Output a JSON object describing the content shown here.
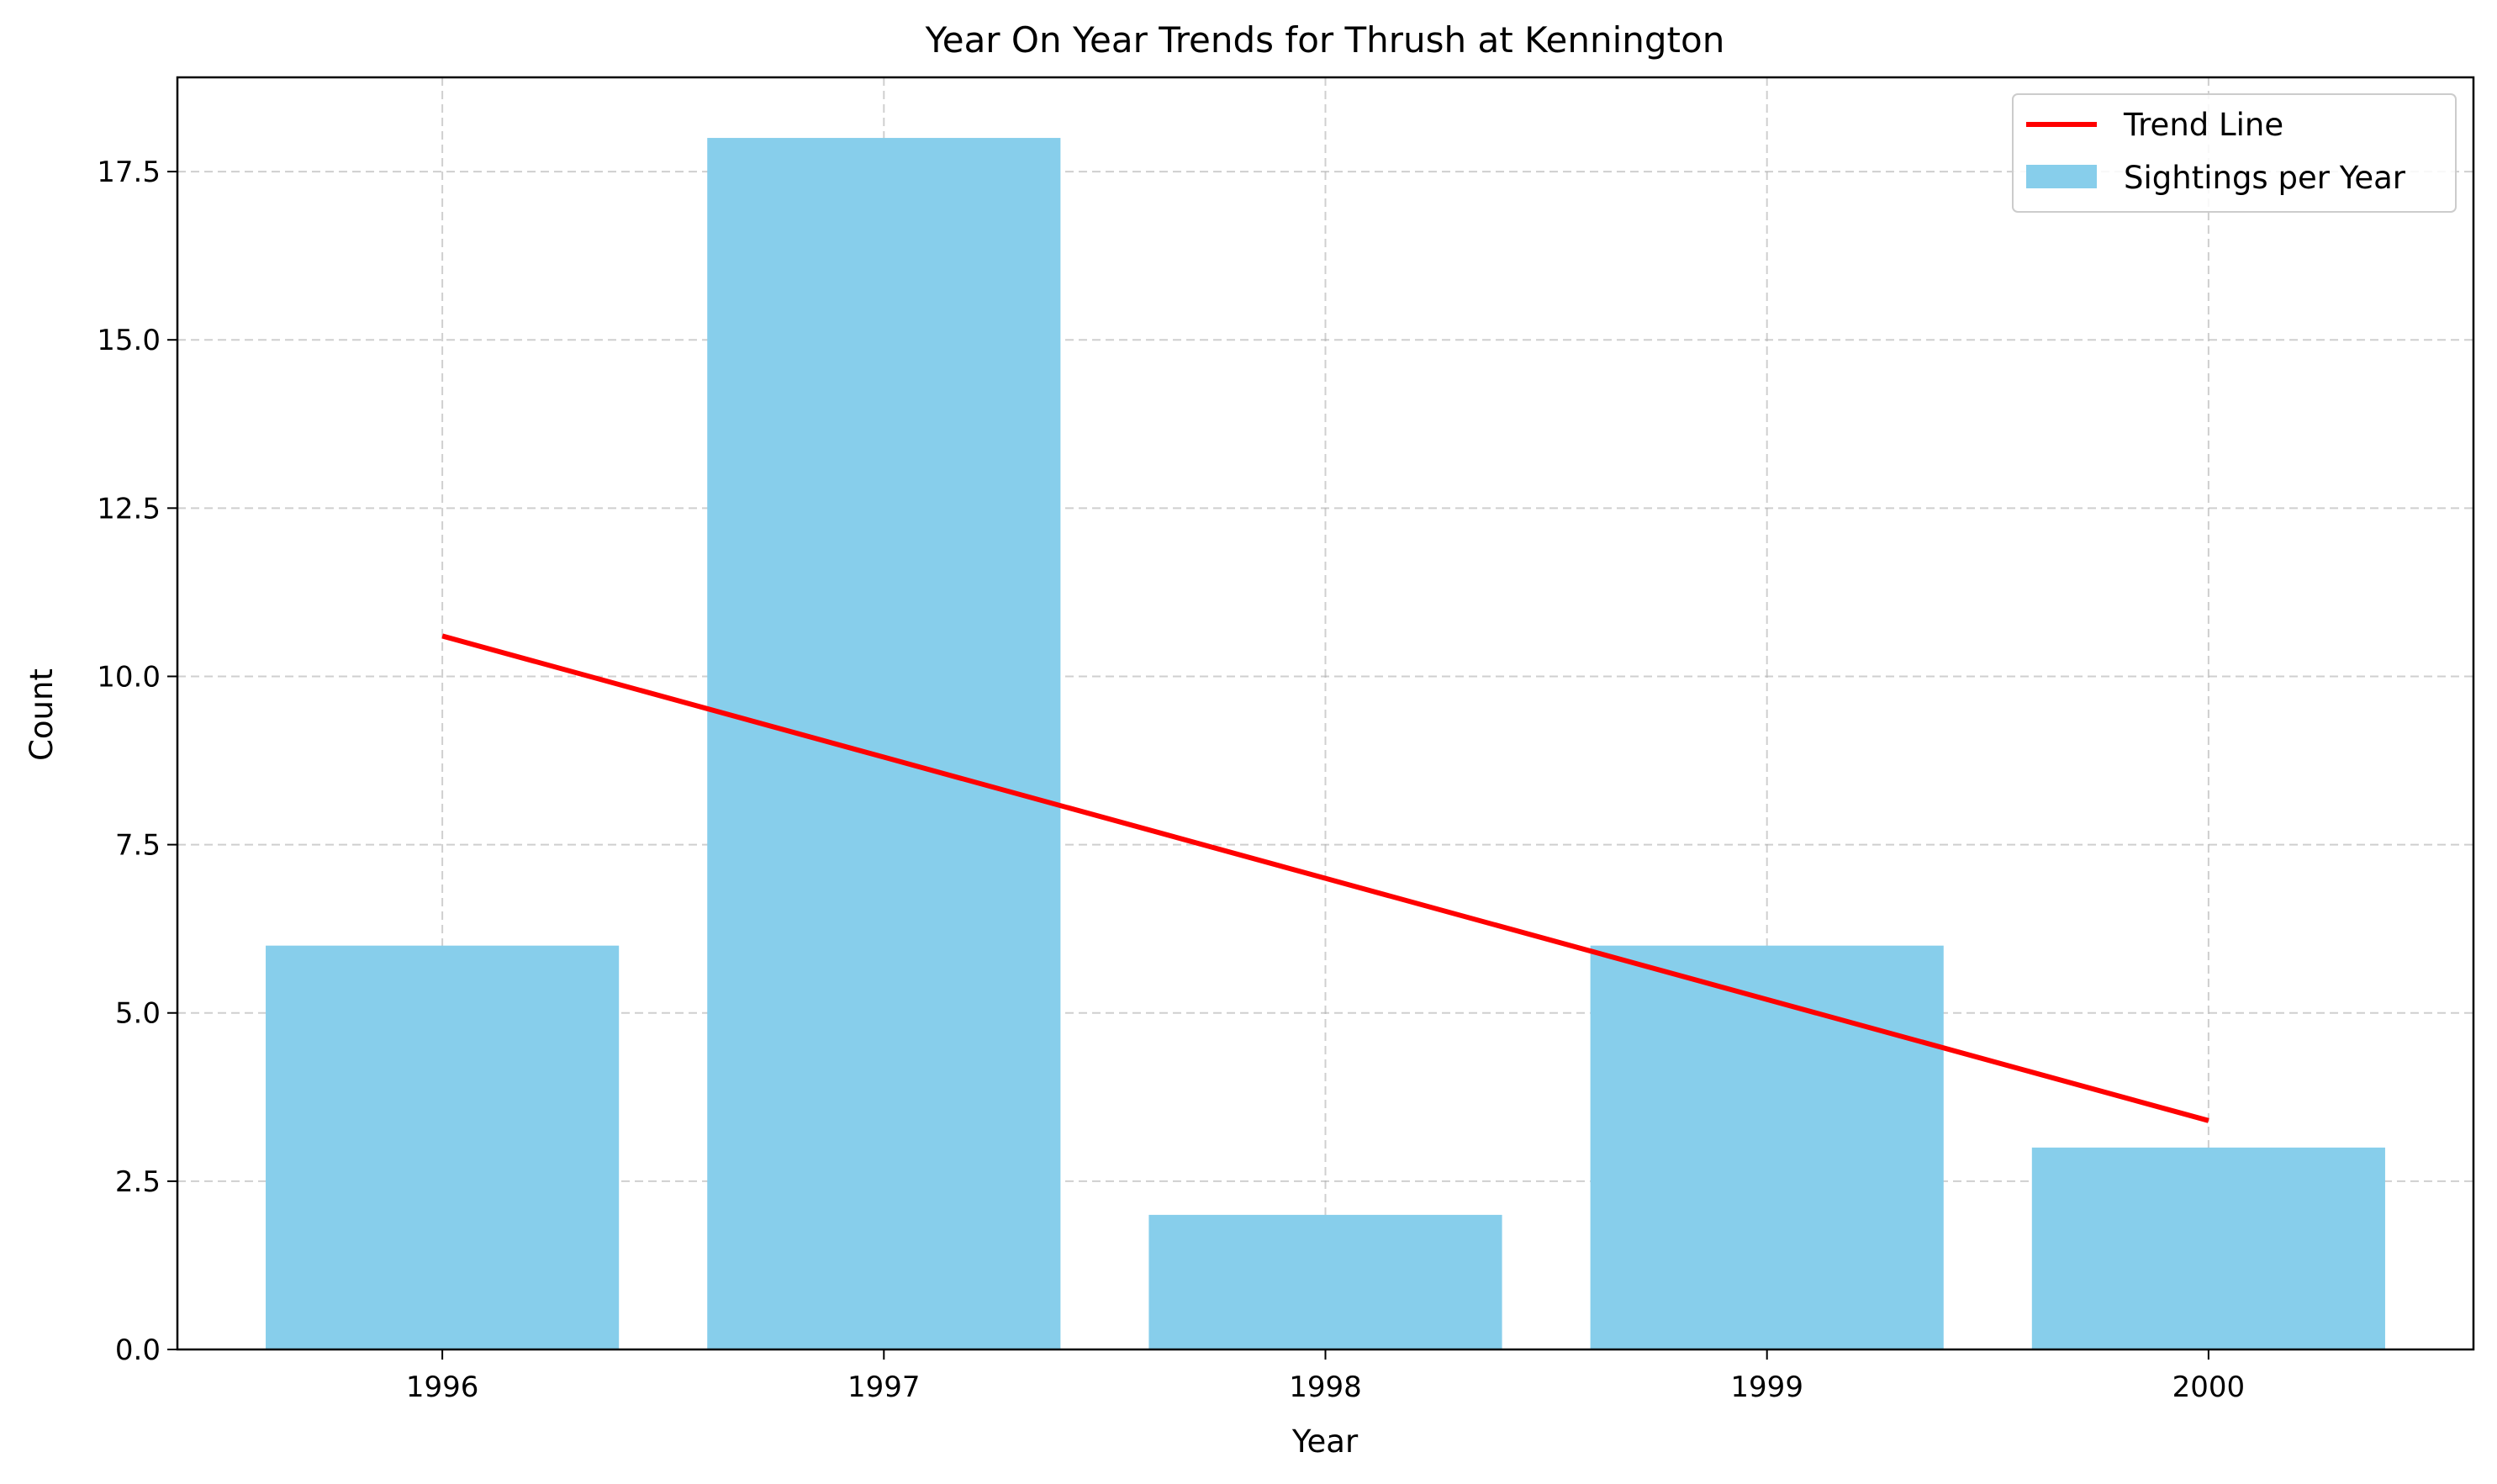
{
  "chart_data": {
    "type": "bar",
    "title": "Year On Year Trends for Thrush at Kennington",
    "xlabel": "Year",
    "ylabel": "Count",
    "categories": [
      "1996",
      "1997",
      "1998",
      "1999",
      "2000"
    ],
    "series": [
      {
        "name": "Sightings per Year",
        "type": "bar",
        "color": "#87ceeb",
        "values": [
          6,
          18,
          2,
          6,
          3
        ]
      },
      {
        "name": "Trend Line",
        "type": "line",
        "color": "#ff0000",
        "values": [
          10.6,
          8.8,
          7.0,
          5.2,
          3.4
        ]
      }
    ],
    "ylim": [
      0,
      18.9
    ],
    "yticks": [
      "0.0",
      "2.5",
      "5.0",
      "7.5",
      "10.0",
      "12.5",
      "15.0",
      "17.5"
    ],
    "grid": true,
    "legend_position": "top-right"
  }
}
